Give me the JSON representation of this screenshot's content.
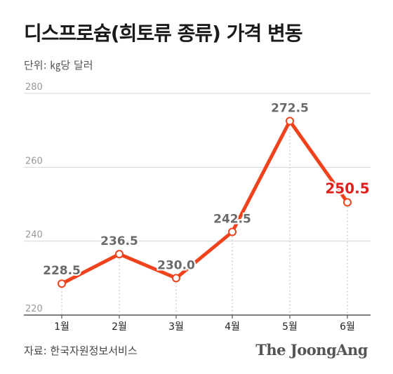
{
  "title": "디스프로슘(희토류 종류) 가격 변동",
  "unit_label": "단위: ㎏당 달러",
  "source": "자료: 한국자원정보서비스",
  "brand": "The JoongAng",
  "colors": {
    "line": "#f0421c",
    "highlight_label": "#e0201c",
    "label": "#6a6a6a",
    "grid": "#d4d4d4",
    "axis": "#333333"
  },
  "chart_data": {
    "type": "line",
    "title": "디스프로슘(희토류 종류) 가격 변동",
    "ylabel": "단위: ㎏당 달러",
    "xlabel": "",
    "categories": [
      "1월",
      "2월",
      "3월",
      "4월",
      "5월",
      "6월"
    ],
    "series": [
      {
        "values": [
          228.5,
          236.5,
          230.0,
          242.5,
          272.5,
          250.5
        ]
      }
    ],
    "data_labels": [
      "228.5",
      "236.5",
      "230.0",
      "242.5",
      "272.5",
      "250.5"
    ],
    "highlight_index": 5,
    "yticks": [
      220,
      240,
      260,
      280
    ],
    "ylim": [
      220,
      280
    ],
    "grid": true
  }
}
